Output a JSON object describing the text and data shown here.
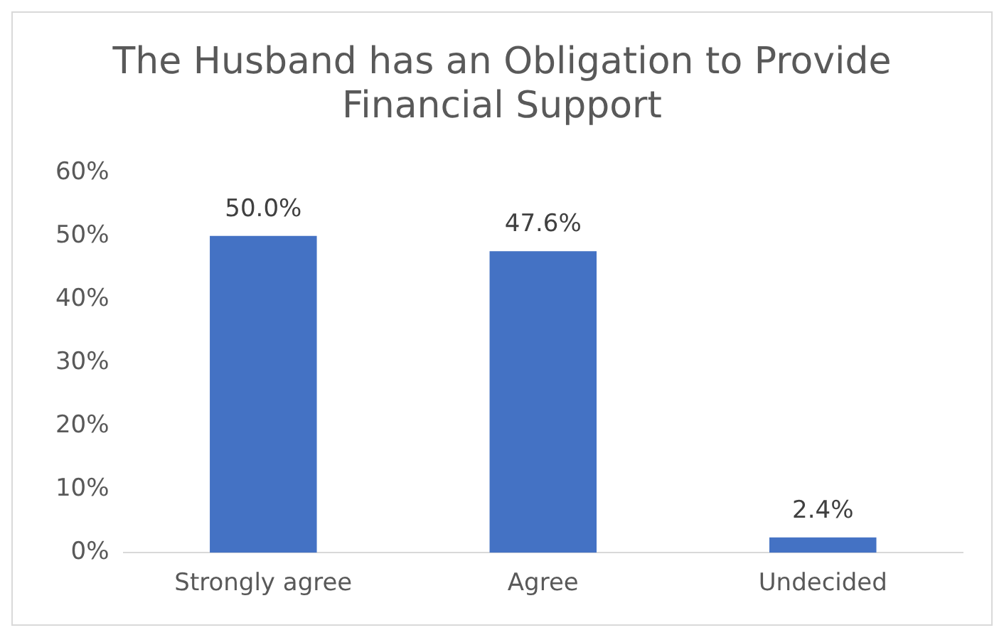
{
  "chart_data": {
    "type": "bar",
    "title": "The Husband has an Obligation to Provide Financial Support",
    "categories": [
      "Strongly agree",
      "Agree",
      "Undecided"
    ],
    "values": [
      50.0,
      47.6,
      2.4
    ],
    "color": "#4472c4",
    "value_labels": [
      "50.0%",
      "47.6%",
      "2.4%"
    ],
    "ylim": [
      0,
      60
    ],
    "yticks": [
      {
        "value": 0,
        "label": "0%"
      },
      {
        "value": 10,
        "label": "10%"
      },
      {
        "value": 20,
        "label": "20%"
      },
      {
        "value": 30,
        "label": "30%"
      },
      {
        "value": 40,
        "label": "40%"
      },
      {
        "value": 50,
        "label": "50%"
      },
      {
        "value": 60,
        "label": "60%"
      }
    ],
    "grid": false,
    "legend": false
  }
}
